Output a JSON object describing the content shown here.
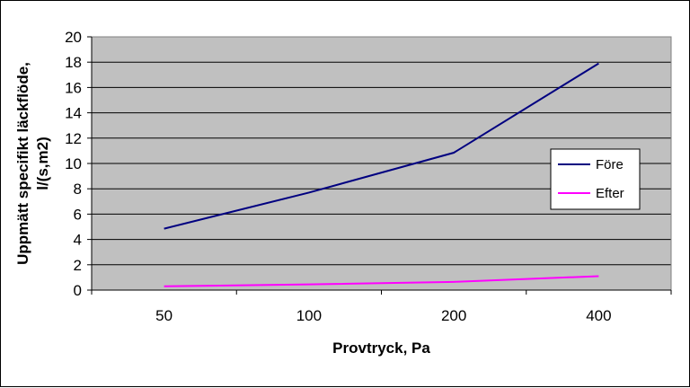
{
  "chart_data": {
    "type": "line",
    "categories": [
      "50",
      "100",
      "200",
      "400"
    ],
    "xlabel": "Provtryck, Pa",
    "ylabel_line1": "Uppmätt specifikt läckflöde,",
    "ylabel_line2": "l/(s,m2)",
    "ylim": [
      0,
      20
    ],
    "ystep": 2,
    "grid": true,
    "plot_background": "#c0c0c0",
    "legend_position": "right",
    "series": [
      {
        "name": "Före",
        "color": "#000080",
        "values": [
          4.85,
          7.7,
          10.85,
          17.9
        ]
      },
      {
        "name": "Efter",
        "color": "#ff00ff",
        "values": [
          0.3,
          0.45,
          0.65,
          1.1
        ]
      }
    ]
  }
}
